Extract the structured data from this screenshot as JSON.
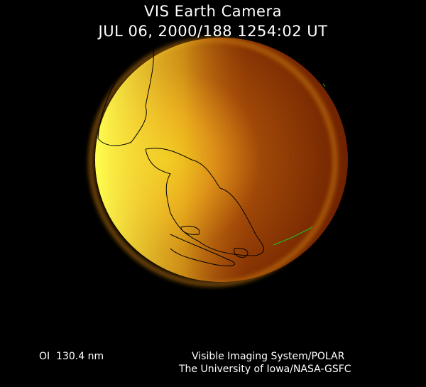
{
  "header": {
    "title": "VIS Earth Camera",
    "timestamp": "JUL 06, 2000/188 1254:02 UT"
  },
  "footer": {
    "filter": "OI  130.4 nm",
    "instrument": "Visible Imaging System/POLAR",
    "institution": "The University of Iowa/NASA-GSFC"
  },
  "colors": {
    "background": "#000000",
    "limb_bright": "#f8e838",
    "disk_mid": "#c06010",
    "disk_dark": "#702000",
    "coastline": "#000000",
    "aurora_overlay": "#20c020"
  }
}
